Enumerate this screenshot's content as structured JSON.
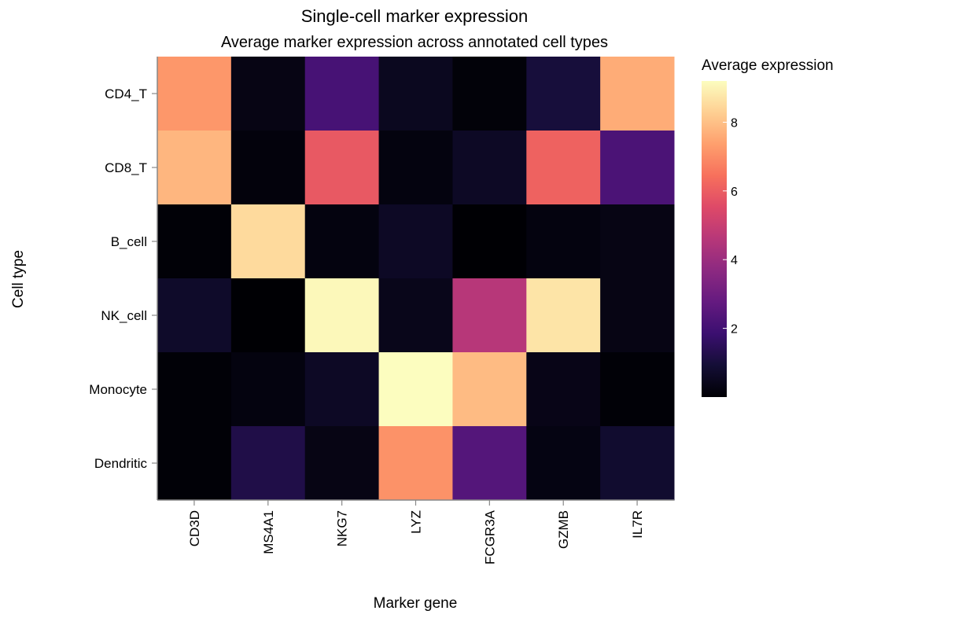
{
  "chart_data": {
    "type": "heatmap",
    "title": "Single-cell marker expression",
    "subtitle": "Average marker expression across annotated cell types",
    "xlabel": "Marker gene",
    "ylabel": "Cell type",
    "x_categories": [
      "CD3D",
      "MS4A1",
      "NKG7",
      "LYZ",
      "FCGR3A",
      "GZMB",
      "IL7R"
    ],
    "y_categories": [
      "CD4_T",
      "CD8_T",
      "B_cell",
      "NK_cell",
      "Monocyte",
      "Dendritic"
    ],
    "values": [
      [
        7.2,
        0.3,
        2.1,
        0.5,
        0.1,
        1.0,
        7.6
      ],
      [
        7.8,
        0.15,
        5.9,
        0.2,
        0.6,
        6.1,
        2.2
      ],
      [
        0.05,
        8.5,
        0.2,
        0.6,
        0.0,
        0.2,
        0.3
      ],
      [
        0.7,
        0.0,
        9.1,
        0.4,
        4.6,
        8.7,
        0.3
      ],
      [
        0.05,
        0.2,
        0.6,
        9.2,
        7.9,
        0.35,
        0.05
      ],
      [
        0.05,
        1.2,
        0.3,
        7.1,
        2.4,
        0.25,
        0.8
      ]
    ],
    "color_scale": {
      "name": "magma",
      "domain": [
        0,
        9.2
      ],
      "ticks": [
        2,
        4,
        6,
        8
      ]
    },
    "legend": {
      "title": "Average expression",
      "placement": "right"
    }
  }
}
